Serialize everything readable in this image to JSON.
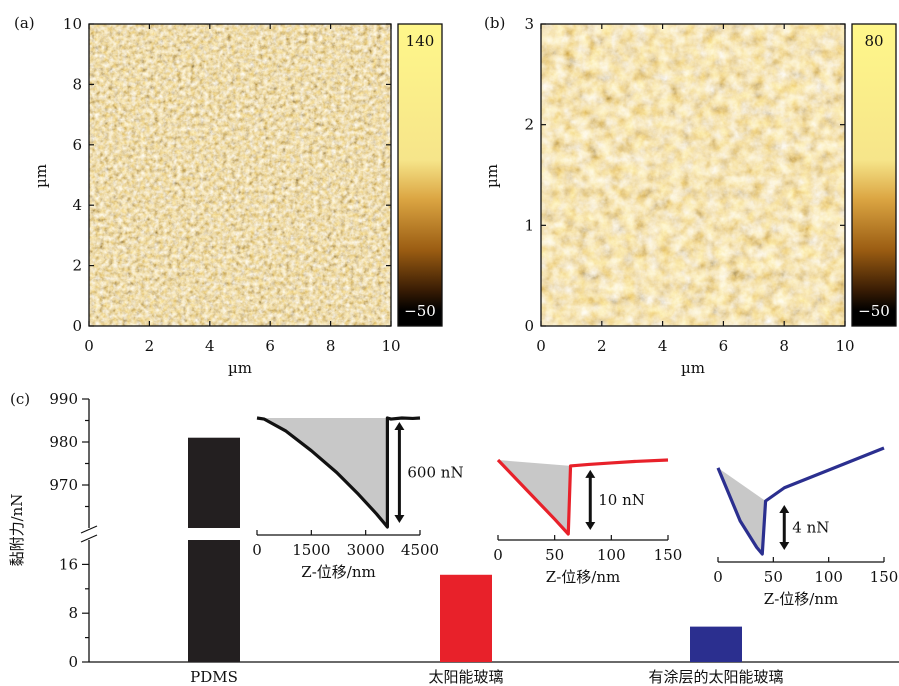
{
  "chart_data": [
    {
      "panel": "(a)",
      "type": "heatmap",
      "xlabel": "µm",
      "ylabel": "µm",
      "xlim": [
        0,
        10
      ],
      "ylim": [
        0,
        10
      ],
      "xticks": [
        "0",
        "2",
        "4",
        "6",
        "8",
        "10"
      ],
      "yticks": [
        "0",
        "2",
        "4",
        "6",
        "8",
        "10"
      ],
      "colorbar": {
        "max_label": "140",
        "min_label": "−50"
      },
      "colors": {
        "dark": "#0a0500",
        "mid": "#c47e1a",
        "light": "#fff78a"
      }
    },
    {
      "panel": "(b)",
      "type": "heatmap",
      "xlabel": "µm",
      "ylabel": "µm",
      "xlim": [
        0,
        10
      ],
      "ylim": [
        0,
        3
      ],
      "xticks": [
        "0",
        "2",
        "4",
        "6",
        "8",
        "10"
      ],
      "yticks": [
        "0",
        "1",
        "2",
        "3"
      ],
      "colorbar": {
        "max_label": "80",
        "min_label": "−50"
      },
      "colors": {
        "dark": "#0a0500",
        "mid": "#c47e1a",
        "light": "#fff78a"
      }
    },
    {
      "panel": "(c)",
      "type": "bar",
      "ylabel": "黏附力/nN",
      "categories": [
        "PDMS",
        "太阳能玻璃",
        "有涂层的太阳能玻璃"
      ],
      "values": [
        981,
        14.3,
        5.8
      ],
      "colors": [
        "#231f20",
        "#e8212a",
        "#2b2f8f"
      ],
      "y_lower_ticks": [
        "0",
        "8",
        "16"
      ],
      "y_upper_ticks": [
        "970",
        "980",
        "990"
      ],
      "axis_break": true,
      "insets": [
        {
          "type": "line",
          "xlabel": "Z-位移/nm",
          "xticks": [
            "0",
            "1500",
            "3000",
            "4500"
          ],
          "xlim": [
            0,
            4500
          ],
          "annotation": "600 nN",
          "color": "#111111",
          "x": [
            0,
            200,
            800,
            1500,
            2200,
            2800,
            3300,
            3600,
            3600,
            3700,
            4000,
            4300,
            4500
          ],
          "y": [
            0,
            -5,
            -60,
            -150,
            -250,
            -350,
            -440,
            -500,
            0,
            -5,
            0,
            -2,
            0
          ]
        },
        {
          "type": "line",
          "xlabel": "Z-位移/nm",
          "xticks": [
            "0",
            "50",
            "100",
            "150"
          ],
          "xlim": [
            0,
            150
          ],
          "annotation": "10 nN",
          "color": "#e8212a",
          "x": [
            0,
            25,
            50,
            62,
            64,
            80,
            100,
            120,
            150
          ],
          "y": [
            0,
            -10,
            -20,
            -25,
            -2,
            -1.5,
            -1,
            -0.5,
            0
          ]
        },
        {
          "type": "line",
          "xlabel": "Z-位移/nm",
          "xticks": [
            "0",
            "50",
            "100",
            "150"
          ],
          "xlim": [
            0,
            150
          ],
          "annotation": "4 nN",
          "color": "#2b2f8f",
          "x": [
            0,
            20,
            35,
            40,
            43,
            60,
            90,
            120,
            150
          ],
          "y": [
            0,
            -4,
            -6,
            -6.5,
            -2.5,
            -1.5,
            -0.5,
            0.5,
            1.5
          ]
        }
      ]
    }
  ]
}
